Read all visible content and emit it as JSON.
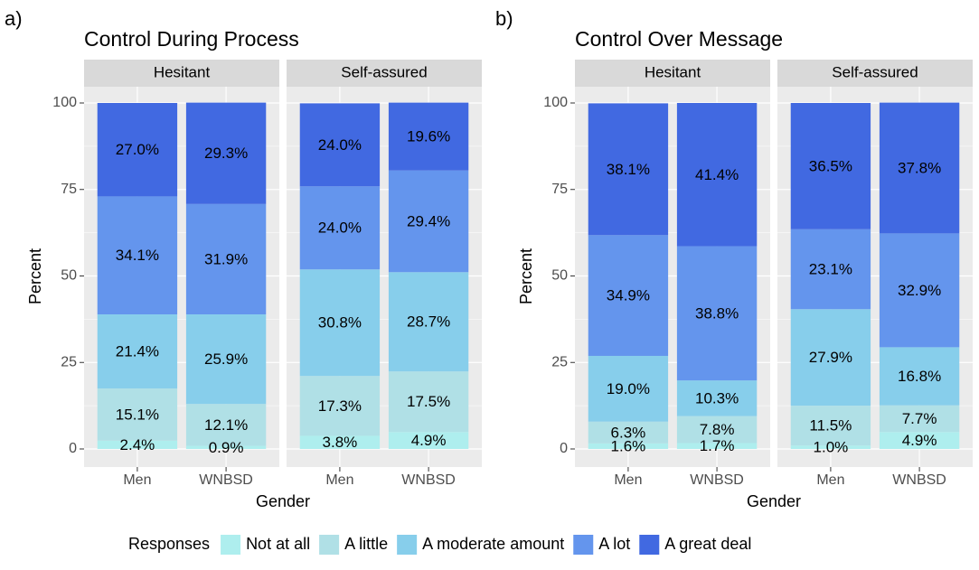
{
  "chart_data": [
    {
      "type": "bar",
      "stacked": true,
      "panel_label": "a)",
      "title": "Control During Process",
      "xlabel": "Gender",
      "ylabel": "Percent",
      "ylim": [
        0,
        100
      ],
      "yticks": [
        0,
        25,
        50,
        75,
        100
      ],
      "grid": true,
      "categories": [
        "Men",
        "WNBSD"
      ],
      "facets": [
        {
          "name": "Hesitant",
          "series": [
            {
              "values": [
                2.4,
                0.9
              ],
              "value_labels": [
                "2.4%",
                "0.9%"
              ]
            },
            {
              "values": [
                15.1,
                12.1
              ],
              "value_labels": [
                "15.1%",
                "12.1%"
              ]
            },
            {
              "values": [
                21.4,
                25.9
              ],
              "value_labels": [
                "21.4%",
                "25.9%"
              ]
            },
            {
              "values": [
                34.1,
                31.9
              ],
              "value_labels": [
                "34.1%",
                "31.9%"
              ]
            },
            {
              "values": [
                27.0,
                29.3
              ],
              "value_labels": [
                "27.0%",
                "29.3%"
              ]
            }
          ]
        },
        {
          "name": "Self-assured",
          "series": [
            {
              "values": [
                3.8,
                4.9
              ],
              "value_labels": [
                "3.8%",
                "4.9%"
              ]
            },
            {
              "values": [
                17.3,
                17.5
              ],
              "value_labels": [
                "17.3%",
                "17.5%"
              ]
            },
            {
              "values": [
                30.8,
                28.7
              ],
              "value_labels": [
                "30.8%",
                "28.7%"
              ]
            },
            {
              "values": [
                24.0,
                29.4
              ],
              "value_labels": [
                "24.0%",
                "29.4%"
              ]
            },
            {
              "values": [
                24.0,
                19.6
              ],
              "value_labels": [
                "24.0%",
                "19.6%"
              ]
            }
          ]
        }
      ]
    },
    {
      "type": "bar",
      "stacked": true,
      "panel_label": "b)",
      "title": "Control Over Message",
      "xlabel": "Gender",
      "ylabel": "Percent",
      "ylim": [
        0,
        100
      ],
      "yticks": [
        0,
        25,
        50,
        75,
        100
      ],
      "grid": true,
      "categories": [
        "Men",
        "WNBSD"
      ],
      "facets": [
        {
          "name": "Hesitant",
          "series": [
            {
              "values": [
                1.6,
                1.7
              ],
              "value_labels": [
                "1.6%",
                "1.7%"
              ]
            },
            {
              "values": [
                6.3,
                7.8
              ],
              "value_labels": [
                "6.3%",
                "7.8%"
              ]
            },
            {
              "values": [
                19.0,
                10.3
              ],
              "value_labels": [
                "19.0%",
                "10.3%"
              ]
            },
            {
              "values": [
                34.9,
                38.8
              ],
              "value_labels": [
                "34.9%",
                "38.8%"
              ]
            },
            {
              "values": [
                38.1,
                41.4
              ],
              "value_labels": [
                "38.1%",
                "41.4%"
              ]
            }
          ]
        },
        {
          "name": "Self-assured",
          "series": [
            {
              "values": [
                1.0,
                4.9
              ],
              "value_labels": [
                "1.0%",
                "4.9%"
              ]
            },
            {
              "values": [
                11.5,
                7.7
              ],
              "value_labels": [
                "11.5%",
                "7.7%"
              ]
            },
            {
              "values": [
                27.9,
                16.8
              ],
              "value_labels": [
                "27.9%",
                "16.8%"
              ]
            },
            {
              "values": [
                23.1,
                32.9
              ],
              "value_labels": [
                "23.1%",
                "32.9%"
              ]
            },
            {
              "values": [
                36.5,
                37.8
              ],
              "value_labels": [
                "36.5%",
                "37.8%"
              ]
            }
          ]
        }
      ]
    }
  ],
  "legend": {
    "title": "Responses",
    "series": [
      {
        "name": "Not at all",
        "color": "#aeeeee"
      },
      {
        "name": "A little",
        "color": "#b0e0e6"
      },
      {
        "name": "A moderate amount",
        "color": "#87ceeb"
      },
      {
        "name": "A lot",
        "color": "#6495ed"
      },
      {
        "name": "A great deal",
        "color": "#4169e1"
      }
    ]
  }
}
